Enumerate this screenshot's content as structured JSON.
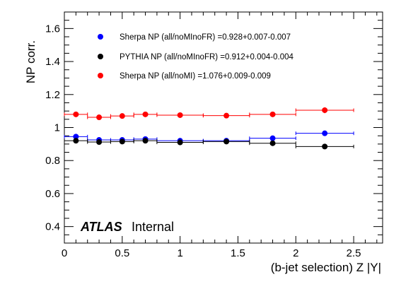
{
  "chart_data": {
    "type": "scatter",
    "xlabel": "(b-jet selection) Z |Y|",
    "ylabel": "NP corr.",
    "xlim": [
      0,
      2.75
    ],
    "ylim": [
      0.3,
      1.7
    ],
    "x_ticks": [
      "0",
      "0.5",
      "1",
      "1.5",
      "2",
      "2.5"
    ],
    "y_ticks": [
      "0.4",
      "0.6",
      "0.8",
      "1",
      "1.2",
      "1.4",
      "1.6"
    ],
    "grid": false,
    "legend_position": "top-left",
    "bins": [
      [
        0,
        0.2
      ],
      [
        0.2,
        0.4
      ],
      [
        0.4,
        0.6
      ],
      [
        0.6,
        0.8
      ],
      [
        0.8,
        1.2
      ],
      [
        1.2,
        1.6
      ],
      [
        1.6,
        2.0
      ],
      [
        2.0,
        2.5
      ]
    ],
    "series": [
      {
        "name": "Sherpa NP (all/noMInoFR) =0.928+0.007-0.007",
        "color": "#0000ff",
        "x": [
          0.1,
          0.3,
          0.5,
          0.7,
          1.0,
          1.4,
          1.8,
          2.25
        ],
        "y": [
          0.945,
          0.925,
          0.925,
          0.93,
          0.92,
          0.92,
          0.935,
          0.965
        ],
        "yerr": [
          0.008,
          0.005,
          0.005,
          0.005,
          0.005,
          0.005,
          0.008,
          0.012
        ]
      },
      {
        "name": "PYTHIA NP (all/noMInoFR) =0.912+0.004-0.004",
        "color": "#000000",
        "x": [
          0.1,
          0.3,
          0.5,
          0.7,
          1.0,
          1.4,
          1.8,
          2.25
        ],
        "y": [
          0.92,
          0.912,
          0.915,
          0.92,
          0.91,
          0.915,
          0.905,
          0.885
        ],
        "yerr": [
          0.004,
          0.004,
          0.004,
          0.004,
          0.004,
          0.004,
          0.005,
          0.006
        ]
      },
      {
        "name": "Sherpa NP (all/noMI)     =1.076+0.009-0.009",
        "color": "#ff0000",
        "x": [
          0.1,
          0.3,
          0.5,
          0.7,
          1.0,
          1.4,
          1.8,
          2.25
        ],
        "y": [
          1.08,
          1.062,
          1.07,
          1.08,
          1.075,
          1.072,
          1.08,
          1.105
        ],
        "yerr": [
          0.008,
          0.008,
          0.008,
          0.008,
          0.008,
          0.008,
          0.01,
          0.018
        ]
      }
    ],
    "annotation": {
      "experiment": "ATLAS",
      "status": "Internal"
    }
  }
}
